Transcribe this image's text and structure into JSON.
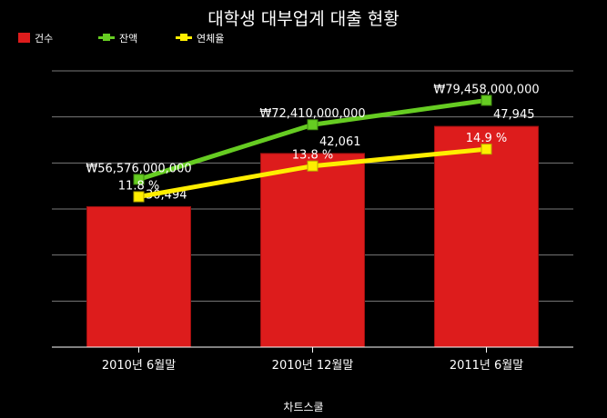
{
  "chart_data": {
    "type": "bar",
    "title": "대학생 대부업계 대출 현황",
    "categories": [
      "2010년 6월말",
      "2010년 12월말",
      "2011년 6월말"
    ],
    "series": [
      {
        "name": "건수",
        "type": "bar",
        "color": "#dd1c1c",
        "values": [
          30494,
          42061,
          47945
        ],
        "labels": [
          "30,494",
          "42,061",
          "47,945"
        ]
      },
      {
        "name": "잔액",
        "type": "line",
        "color": "#66cc22",
        "values": [
          56576000000,
          72410000000,
          79458000000
        ],
        "labels": [
          "₩56,576,000,000",
          "₩72,410,000,000",
          "₩79,458,000,000"
        ]
      },
      {
        "name": "연체율",
        "type": "line",
        "color": "#ffee00",
        "values": [
          11.8,
          13.8,
          14.9
        ],
        "labels": [
          "11.8 %",
          "13.8 %",
          "14.9 %"
        ]
      }
    ],
    "grid": true,
    "legend": "top-left",
    "source": "차트스쿨"
  }
}
